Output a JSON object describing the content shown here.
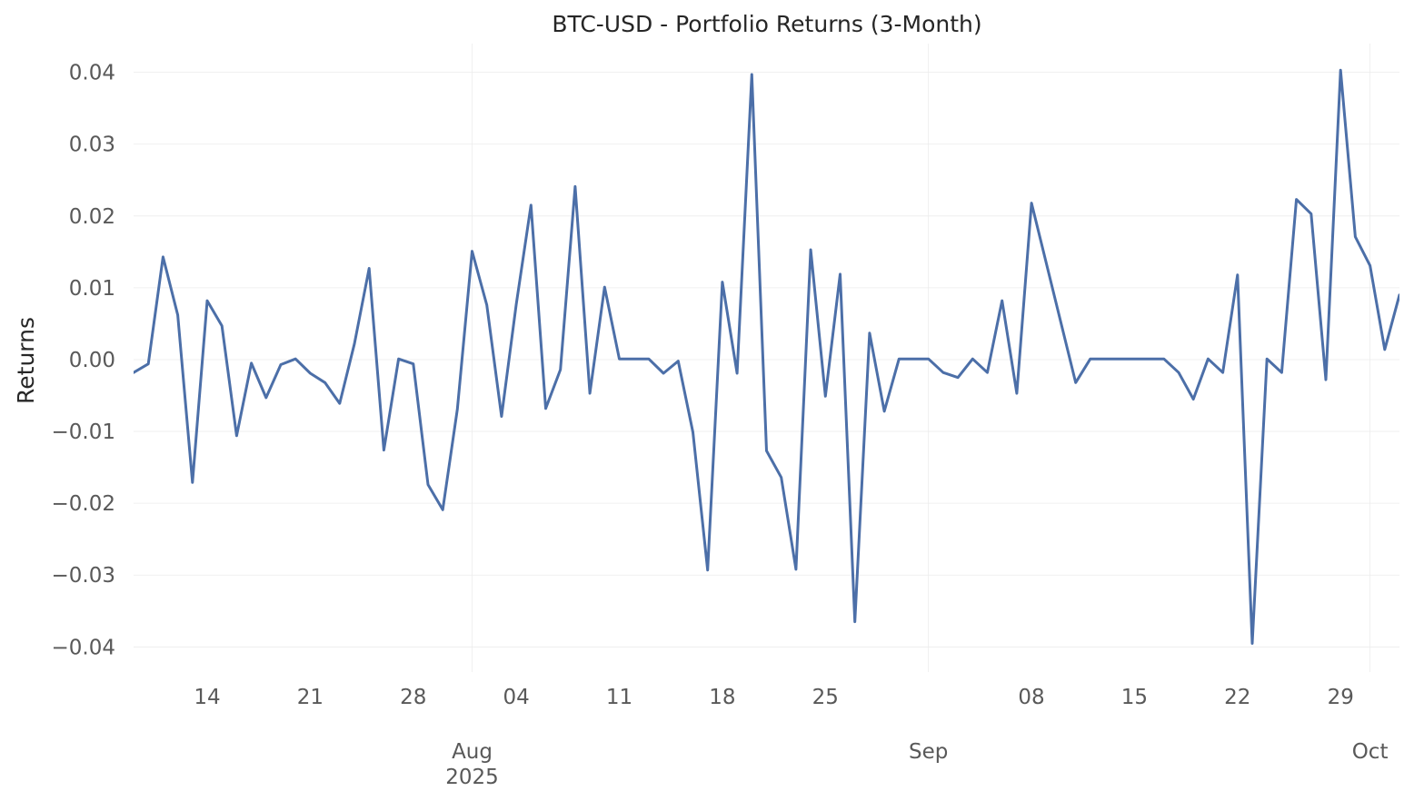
{
  "chart_data": {
    "type": "line",
    "title": "BTC-USD - Portfolio Returns (3-Month)",
    "xlabel": "",
    "ylabel": "Returns",
    "ylim": [
      -0.0435,
      0.044
    ],
    "xlim": [
      "2025-07-09",
      "2025-10-03"
    ],
    "grid": true,
    "y_ticks": [
      -0.04,
      -0.03,
      -0.02,
      -0.01,
      0.0,
      0.01,
      0.02,
      0.03,
      0.04
    ],
    "y_tick_labels": [
      "−0.04",
      "−0.03",
      "−0.02",
      "−0.01",
      "0.00",
      "0.01",
      "0.02",
      "0.03",
      "0.04"
    ],
    "x_minor_ticks": [
      {
        "date": "2025-07-14",
        "label": "14"
      },
      {
        "date": "2025-07-21",
        "label": "21"
      },
      {
        "date": "2025-07-28",
        "label": "28"
      },
      {
        "date": "2025-08-04",
        "label": "04"
      },
      {
        "date": "2025-08-11",
        "label": "11"
      },
      {
        "date": "2025-08-18",
        "label": "18"
      },
      {
        "date": "2025-08-25",
        "label": "25"
      },
      {
        "date": "2025-09-08",
        "label": "08"
      },
      {
        "date": "2025-09-15",
        "label": "15"
      },
      {
        "date": "2025-09-22",
        "label": "22"
      },
      {
        "date": "2025-09-29",
        "label": "29"
      }
    ],
    "x_major_ticks": [
      {
        "date": "2025-08-01",
        "label": "Aug",
        "sublabel": "2025"
      },
      {
        "date": "2025-09-01",
        "label": "Sep",
        "sublabel": ""
      },
      {
        "date": "2025-10-01",
        "label": "Oct",
        "sublabel": ""
      }
    ],
    "series": [
      {
        "color": "#4c6fa8",
        "x": [
          "2025-07-09",
          "2025-07-10",
          "2025-07-11",
          "2025-07-12",
          "2025-07-13",
          "2025-07-14",
          "2025-07-15",
          "2025-07-16",
          "2025-07-17",
          "2025-07-18",
          "2025-07-19",
          "2025-07-20",
          "2025-07-21",
          "2025-07-22",
          "2025-07-23",
          "2025-07-24",
          "2025-07-25",
          "2025-07-26",
          "2025-07-27",
          "2025-07-28",
          "2025-07-29",
          "2025-07-30",
          "2025-07-31",
          "2025-08-01",
          "2025-08-02",
          "2025-08-03",
          "2025-08-04",
          "2025-08-05",
          "2025-08-06",
          "2025-08-07",
          "2025-08-08",
          "2025-08-09",
          "2025-08-10",
          "2025-08-11",
          "2025-08-12",
          "2025-08-13",
          "2025-08-14",
          "2025-08-15",
          "2025-08-16",
          "2025-08-17",
          "2025-08-18",
          "2025-08-19",
          "2025-08-20",
          "2025-08-21",
          "2025-08-22",
          "2025-08-23",
          "2025-08-24",
          "2025-08-25",
          "2025-08-26",
          "2025-08-27",
          "2025-08-28",
          "2025-08-29",
          "2025-08-30",
          "2025-08-31",
          "2025-09-01",
          "2025-09-02",
          "2025-09-03",
          "2025-09-04",
          "2025-09-05",
          "2025-09-06",
          "2025-09-07",
          "2025-09-08",
          "2025-09-11",
          "2025-09-12",
          "2025-09-13",
          "2025-09-14",
          "2025-09-15",
          "2025-09-16",
          "2025-09-17",
          "2025-09-18",
          "2025-09-19",
          "2025-09-20",
          "2025-09-21",
          "2025-09-22",
          "2025-09-23",
          "2025-09-24",
          "2025-09-25",
          "2025-09-26",
          "2025-09-27",
          "2025-09-28",
          "2025-09-29",
          "2025-09-30",
          "2025-10-01",
          "2025-10-02",
          "2025-10-03",
          "2025-10-04"
        ],
        "y": [
          -0.0018,
          -0.0006,
          0.0143,
          0.0062,
          -0.0171,
          0.0082,
          0.0047,
          -0.0106,
          -0.0005,
          -0.0053,
          -0.0007,
          0.0001,
          -0.0019,
          -0.0032,
          -0.0061,
          0.0022,
          0.0127,
          -0.0126,
          0.0001,
          -0.0006,
          -0.0174,
          -0.0209,
          -0.0069,
          0.0151,
          0.0076,
          -0.0079,
          0.0077,
          0.0215,
          -0.0068,
          -0.0014,
          0.0241,
          -0.0047,
          0.0101,
          0.0001,
          0.0001,
          0.0001,
          -0.0019,
          -0.0002,
          -0.0101,
          -0.0293,
          0.0108,
          -0.0019,
          0.0397,
          -0.0127,
          -0.0164,
          -0.0292,
          0.0153,
          -0.0051,
          0.0119,
          -0.0365,
          0.0037,
          -0.0072,
          0.0001,
          0.0001,
          0.0001,
          -0.0018,
          -0.0025,
          0.0001,
          -0.0018,
          0.0082,
          -0.0047,
          0.0218,
          -0.0032,
          0.0001,
          0.0001,
          0.0001,
          0.0001,
          0.0001,
          0.0001,
          -0.0018,
          -0.0055,
          0.0001,
          -0.0018,
          0.0118,
          -0.0395,
          0.0001,
          -0.0018,
          0.0223,
          0.0203,
          -0.0028,
          0.0403,
          0.0171,
          0.0131,
          0.0014,
          0.009,
          0.0101
        ]
      }
    ]
  }
}
